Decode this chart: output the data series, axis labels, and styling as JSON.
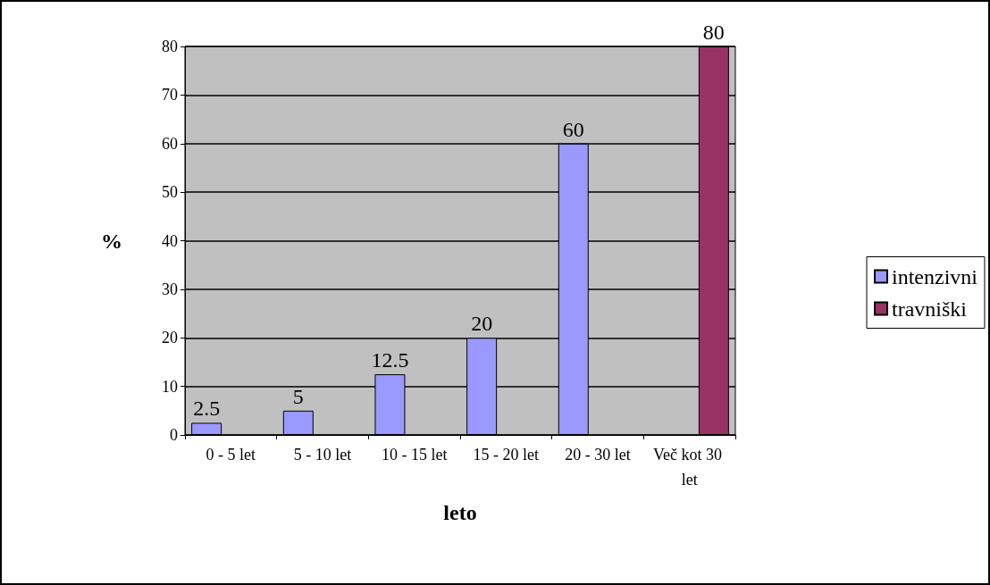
{
  "chart_data": {
    "type": "bar",
    "xlabel": "leto",
    "ylabel": "%",
    "categories": [
      "0 - 5 let",
      "5 - 10 let",
      "10 - 15 let",
      "15 - 20 let",
      "20 - 30 let",
      "Več kot 30 let"
    ],
    "series": [
      {
        "name": "intenzivni",
        "color": "#9999ff",
        "values": [
          2.5,
          5,
          12.5,
          20,
          60,
          null
        ]
      },
      {
        "name": "travniški",
        "color": "#993366",
        "values": [
          null,
          null,
          null,
          null,
          null,
          80
        ]
      }
    ],
    "ylim": [
      0,
      80
    ],
    "yticks": [
      0,
      10,
      20,
      30,
      40,
      50,
      60,
      70,
      80
    ],
    "grid": "y",
    "legend": "right",
    "data_labels": true
  }
}
